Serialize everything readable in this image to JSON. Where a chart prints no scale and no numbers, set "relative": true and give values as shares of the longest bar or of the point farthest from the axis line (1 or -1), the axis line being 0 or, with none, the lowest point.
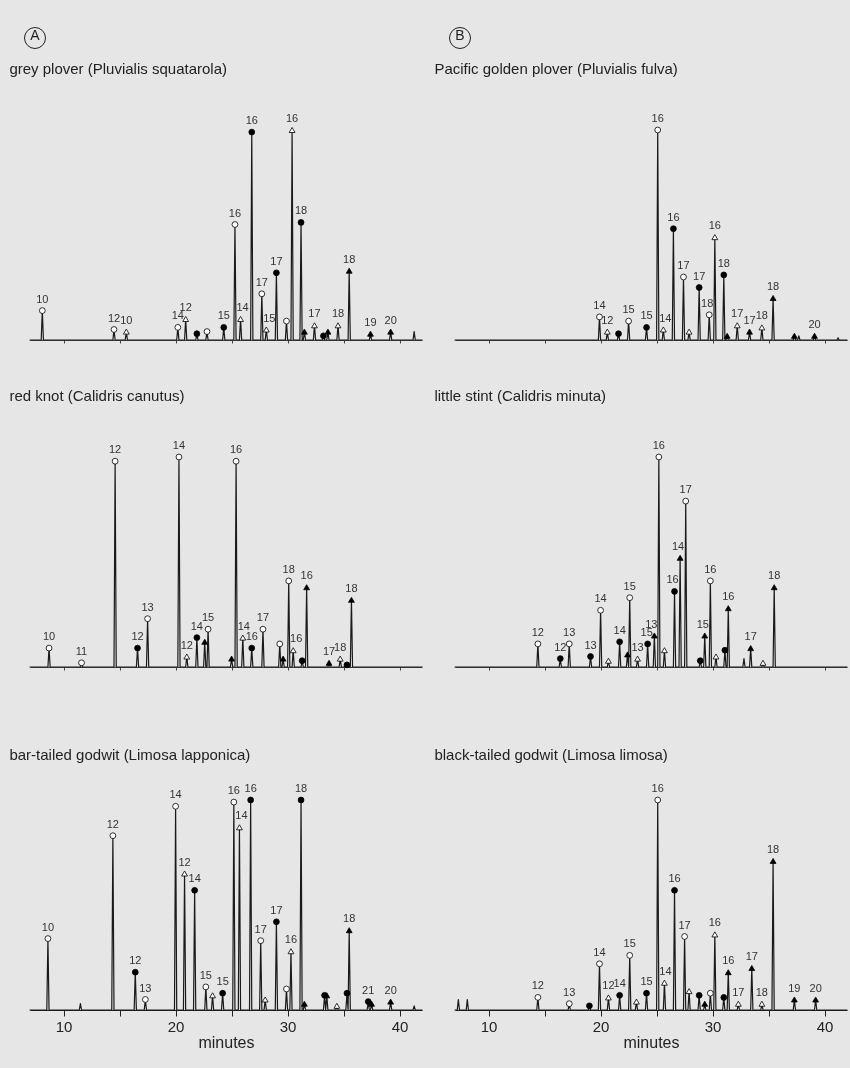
{
  "chart_data": [
    {
      "type": "line",
      "title": "grey plover (Pluvialis squatarola)",
      "relative": true,
      "xlim": [
        7,
        42
      ],
      "xticks": [
        10,
        {
          "value": 15,
          "label": null
        },
        20,
        {
          "value": 25,
          "label": null
        },
        30,
        {
          "value": 35,
          "label": null
        },
        40
      ],
      "tick_labels": false,
      "series": [
        {
          "color": "#1a1a1a",
          "x": [
            7,
            8.0,
            8.1,
            8.2,
            14.4,
            14.5,
            14.6,
            15.5,
            15.6,
            15.7,
            20.1,
            20.2,
            20.3,
            20.8,
            20.9,
            21.0,
            21.8,
            21.9,
            22.0,
            22.7,
            22.8,
            22.9,
            24.2,
            24.3,
            24.4,
            25.2,
            25.3,
            25.4,
            25.7,
            25.8,
            25.9,
            26.7,
            26.8,
            26.9,
            27.6,
            27.7,
            27.8,
            28.0,
            28.1,
            28.2,
            28.9,
            29.0,
            29.1,
            29.8,
            29.9,
            30.0,
            30.3,
            30.4,
            30.5,
            31.1,
            31.2,
            31.3,
            31.4,
            31.5,
            31.6,
            32.3,
            32.4,
            32.5,
            33.1,
            33.2,
            33.3,
            33.5,
            33.6,
            33.7,
            34.4,
            34.5,
            34.6,
            35.4,
            35.5,
            35.6,
            37.3,
            37.4,
            37.5,
            39.1,
            39.2,
            39.3,
            41.2,
            41.3,
            41.4,
            42
          ],
          "values": [
            0,
            0,
            0.14,
            0,
            0,
            0.05,
            0,
            0,
            0.04,
            0,
            0,
            0.06,
            0,
            0,
            0.1,
            0,
            0,
            0.03,
            0,
            0,
            0.04,
            0,
            0,
            0.06,
            0,
            0,
            0.55,
            0,
            0,
            0.1,
            0,
            0,
            0.99,
            0,
            0,
            0.22,
            0,
            0,
            0.05,
            0,
            0,
            0.32,
            0,
            0,
            0.09,
            0,
            0,
            1,
            0,
            0,
            0.56,
            0,
            0,
            0.04,
            0,
            0,
            0.07,
            0,
            0,
            0.02,
            0,
            0,
            0.04,
            0,
            0,
            0.07,
            0,
            0,
            0.33,
            0,
            0,
            0.03,
            0,
            0,
            0.04,
            0,
            0,
            0.04,
            0,
            0
          ]
        },
        {
          "type": "scatter",
          "marker": "circle",
          "color": "#ffffff",
          "x": [
            8.1,
            14.5,
            20.2,
            22.8,
            25.3,
            27.7,
            29.9
          ],
          "values": [
            0.14,
            0.05,
            0.06,
            0.04,
            0.55,
            0.22,
            0.09
          ]
        },
        {
          "type": "scatter",
          "marker": "circle",
          "color": "#000000",
          "x": [
            21.9,
            24.3,
            26.8,
            29.0,
            31.2,
            33.2
          ],
          "values": [
            0.03,
            0.06,
            0.99,
            0.32,
            0.56,
            0.02
          ]
        },
        {
          "type": "scatter",
          "marker": "triangle",
          "color": "#ffffff",
          "x": [
            15.6,
            20.9,
            25.8,
            28.1,
            30.4,
            32.4,
            34.5
          ],
          "values": [
            0.04,
            0.1,
            0.1,
            0.05,
            1,
            0.07,
            0.07
          ]
        },
        {
          "type": "scatter",
          "marker": "triangle",
          "color": "#000000",
          "x": [
            31.5,
            33.6,
            35.5,
            37.4,
            39.2
          ],
          "values": [
            0.04,
            0.04,
            0.33,
            0.03,
            0.04
          ]
        }
      ],
      "annotations": [
        "A",
        {
          "text": "10",
          "x": 8.1,
          "y": 0.14
        },
        {
          "text": "12",
          "x": 14.5,
          "y": 0.05
        },
        {
          "text": "10",
          "x": 15.6,
          "y": 0.04
        },
        {
          "text": "14",
          "x": 20.2,
          "y": 0.06
        },
        {
          "text": "12",
          "x": 20.9,
          "y": 0.1
        },
        {
          "text": "15",
          "x": 24.3,
          "y": 0.06
        },
        {
          "text": "16",
          "x": 25.3,
          "y": 0.55
        },
        {
          "text": "14",
          "x": 25.8,
          "y": 0.1
        },
        {
          "text": "16",
          "x": 26.8,
          "y": 0.99
        },
        {
          "text": "17",
          "x": 27.7,
          "y": 0.22
        },
        {
          "text": "15",
          "x": 28.1,
          "y": 0.05
        },
        {
          "text": "17",
          "x": 29.0,
          "y": 0.32
        },
        {
          "text": "16",
          "x": 30.4,
          "y": 1
        },
        {
          "text": "18",
          "x": 31.2,
          "y": 0.56
        },
        {
          "text": "17",
          "x": 32.4,
          "y": 0.07
        },
        {
          "text": "18",
          "x": 34.5,
          "y": 0.07
        },
        {
          "text": "18",
          "x": 35.5,
          "y": 0.33
        },
        {
          "text": "19",
          "x": 37.4,
          "y": 0.03
        },
        {
          "text": "20",
          "x": 39.2,
          "y": 0.04
        }
      ]
    },
    {
      "type": "line",
      "title": "Pacific golden plover (Pluvialis fulva)",
      "relative": true,
      "xlim": [
        7,
        42
      ],
      "xticks": [
        10,
        {
          "value": 15,
          "label": null
        },
        20,
        {
          "value": 25,
          "label": null
        },
        30,
        {
          "value": 35,
          "label": null
        },
        40
      ],
      "tick_labels": false,
      "series": [
        {
          "color": "#1a1a1a",
          "x": [
            7,
            19.8,
            19.9,
            20.0,
            20.5,
            20.6,
            20.7,
            21.5,
            21.6,
            21.7,
            22.4,
            22.5,
            22.6,
            24.0,
            24.1,
            24.2,
            25.0,
            25.1,
            25.2,
            25.5,
            25.6,
            25.7,
            26.4,
            26.5,
            26.6,
            27.3,
            27.4,
            27.5,
            27.8,
            27.9,
            28.0,
            28.7,
            28.8,
            28.9,
            29.6,
            29.7,
            29.8,
            30.1,
            30.2,
            30.3,
            30.9,
            31.0,
            31.1,
            31.2,
            31.3,
            31.4,
            32.1,
            32.2,
            32.3,
            33.2,
            33.3,
            33.4,
            34.3,
            34.4,
            34.5,
            35.3,
            35.4,
            35.5,
            37.2,
            37.3,
            37.4,
            37.6,
            37.7,
            37.8,
            39.0,
            39.1,
            39.2,
            41.1,
            41.2,
            41.3,
            42
          ],
          "values": [
            0,
            0,
            0.11,
            0,
            0,
            0.04,
            0,
            0,
            0.03,
            0,
            0,
            0.09,
            0,
            0,
            0.06,
            0,
            0,
            1,
            0,
            0,
            0.05,
            0,
            0,
            0.53,
            0,
            0,
            0.3,
            0,
            0,
            0.04,
            0,
            0,
            0.25,
            0,
            0,
            0.12,
            0,
            0,
            0.49,
            0,
            0,
            0.31,
            0,
            0,
            0.02,
            0,
            0,
            0.07,
            0,
            0,
            0.04,
            0,
            0,
            0.06,
            0,
            0,
            0.2,
            0,
            0,
            0.02,
            0,
            0,
            0.02,
            0,
            0,
            0.02,
            0,
            0,
            0.01,
            0,
            0
          ]
        },
        {
          "type": "scatter",
          "marker": "circle",
          "color": "#ffffff",
          "x": [
            19.9,
            22.5,
            25.1,
            27.4,
            29.7
          ],
          "values": [
            0.11,
            0.09,
            1,
            0.3,
            0.12
          ]
        },
        {
          "type": "scatter",
          "marker": "circle",
          "color": "#000000",
          "x": [
            21.6,
            24.1,
            26.5,
            28.8,
            31.0
          ],
          "values": [
            0.03,
            0.06,
            0.53,
            0.25,
            0.31
          ]
        },
        {
          "type": "scatter",
          "marker": "triangle",
          "color": "#ffffff",
          "x": [
            20.6,
            25.6,
            27.9,
            30.2,
            32.2,
            34.4
          ],
          "values": [
            0.04,
            0.05,
            0.04,
            0.49,
            0.07,
            0.06
          ]
        },
        {
          "type": "scatter",
          "marker": "triangle",
          "color": "#000000",
          "x": [
            31.3,
            33.3,
            35.4,
            37.3,
            39.1
          ],
          "values": [
            0.02,
            0.04,
            0.2,
            0.02,
            0.02
          ]
        }
      ],
      "annotations": [
        "B",
        {
          "text": "14",
          "x": 19.9,
          "y": 0.11
        },
        {
          "text": "12",
          "x": 20.6,
          "y": 0.04
        },
        {
          "text": "15",
          "x": 22.5,
          "y": 0.09
        },
        {
          "text": "15",
          "x": 24.1,
          "y": 0.06
        },
        {
          "text": "16",
          "x": 25.1,
          "y": 1
        },
        {
          "text": "14",
          "x": 25.6,
          "y": 0.05
        },
        {
          "text": "16",
          "x": 26.5,
          "y": 0.53
        },
        {
          "text": "17",
          "x": 27.4,
          "y": 0.3
        },
        {
          "text": "17",
          "x": 28.8,
          "y": 0.25
        },
        {
          "text": "18",
          "x": 29.7,
          "y": 0.12
        },
        {
          "text": "16",
          "x": 30.2,
          "y": 0.49
        },
        {
          "text": "18",
          "x": 31.0,
          "y": 0.31
        },
        {
          "text": "17",
          "x": 32.2,
          "y": 0.07
        },
        {
          "text": "17",
          "x": 33.3,
          "y": 0.04
        },
        {
          "text": "18",
          "x": 34.4,
          "y": 0.06
        },
        {
          "text": "18",
          "x": 35.4,
          "y": 0.2
        },
        {
          "text": "20",
          "x": 39.1,
          "y": 0.02
        }
      ]
    },
    {
      "type": "line",
      "title": "red knot (Calidris canutus)",
      "relative": true,
      "xlim": [
        7,
        42
      ],
      "xticks": [
        10,
        {
          "value": 15,
          "label": null
        },
        20,
        {
          "value": 25,
          "label": null
        },
        30,
        {
          "value": 35,
          "label": null
        },
        40
      ],
      "tick_labels": false,
      "series": [
        {
          "color": "#1a1a1a",
          "x": [
            7,
            8.6,
            8.7,
            8.8,
            11.5,
            11.6,
            11.7,
            14.5,
            14.6,
            14.7,
            16.5,
            16.6,
            16.7,
            17.4,
            17.5,
            17.6,
            20.2,
            20.3,
            20.4,
            20.9,
            21.0,
            21.1,
            21.8,
            21.9,
            22.0,
            22.5,
            22.6,
            22.7,
            22.8,
            22.9,
            23.0,
            24.9,
            25.0,
            25.1,
            25.3,
            25.4,
            25.5,
            25.9,
            26.0,
            26.1,
            26.7,
            26.8,
            26.9,
            27.7,
            27.8,
            27.9,
            29.2,
            29.3,
            29.4,
            29.5,
            29.6,
            29.7,
            30.0,
            30.1,
            30.2,
            30.4,
            30.5,
            30.6,
            31.2,
            31.3,
            31.4,
            31.6,
            31.7,
            31.8,
            33.6,
            33.7,
            33.8,
            34.6,
            34.7,
            34.8,
            35.2,
            35.3,
            35.4,
            35.6,
            35.7,
            35.8,
            42
          ],
          "values": [
            0,
            0,
            0.09,
            0,
            0,
            0.02,
            0,
            0,
            0.98,
            0,
            0,
            0.09,
            0,
            0,
            0.23,
            0,
            0,
            1,
            0,
            0,
            0.05,
            0,
            0,
            0.14,
            0,
            0,
            0.12,
            0,
            0,
            0.18,
            0,
            0,
            0.04,
            0,
            0,
            0.98,
            0,
            0,
            0.14,
            0,
            0,
            0.09,
            0,
            0,
            0.18,
            0,
            0,
            0.11,
            0,
            0,
            0.04,
            0,
            0,
            0.41,
            0,
            0,
            0.08,
            0,
            0,
            0.03,
            0,
            0,
            0.38,
            0,
            0,
            0.02,
            0,
            0,
            0.04,
            0,
            0,
            0.01,
            0,
            0,
            0.32,
            0,
            0
          ]
        },
        {
          "type": "scatter",
          "marker": "circle",
          "color": "#ffffff",
          "x": [
            8.7,
            11.6,
            14.6,
            17.5,
            20.3,
            22.9,
            25.4,
            27.8,
            29.3,
            30.1
          ],
          "values": [
            0.09,
            0.02,
            0.98,
            0.23,
            1,
            0.18,
            0.98,
            0.18,
            0.11,
            0.41
          ]
        },
        {
          "type": "scatter",
          "marker": "circle",
          "color": "#000000",
          "x": [
            16.6,
            21.9,
            26.8,
            31.3,
            35.3
          ],
          "values": [
            0.09,
            0.14,
            0.09,
            0.03,
            0.01
          ]
        },
        {
          "type": "scatter",
          "marker": "triangle",
          "color": "#ffffff",
          "x": [
            21.0,
            26.0,
            30.5,
            34.7
          ],
          "values": [
            0.05,
            0.14,
            0.08,
            0.04
          ]
        },
        {
          "type": "scatter",
          "marker": "triangle",
          "color": "#000000",
          "x": [
            22.6,
            25.0,
            29.6,
            31.7,
            33.7,
            35.7
          ],
          "values": [
            0.12,
            0.04,
            0.04,
            0.38,
            0.02,
            0.32
          ]
        }
      ],
      "annotations": [
        {
          "text": "10",
          "x": 8.7,
          "y": 0.09
        },
        {
          "text": "11",
          "x": 11.6,
          "y": 0.02
        },
        {
          "text": "12",
          "x": 14.6,
          "y": 0.98
        },
        {
          "text": "12",
          "x": 16.6,
          "y": 0.09
        },
        {
          "text": "13",
          "x": 17.5,
          "y": 0.23
        },
        {
          "text": "14",
          "x": 20.3,
          "y": 1
        },
        {
          "text": "12",
          "x": 21.0,
          "y": 0.05
        },
        {
          "text": "14",
          "x": 21.9,
          "y": 0.14
        },
        {
          "text": "15",
          "x": 22.9,
          "y": 0.18
        },
        {
          "text": "16",
          "x": 25.4,
          "y": 0.98
        },
        {
          "text": "14",
          "x": 26.0,
          "y": 0.14
        },
        {
          "text": "16",
          "x": 26.8,
          "y": 0.09
        },
        {
          "text": "17",
          "x": 27.8,
          "y": 0.18
        },
        {
          "text": "18",
          "x": 30.1,
          "y": 0.41
        },
        {
          "text": "16",
          "x": 30.5,
          "y": 0.08
        },
        {
          "text": "16",
          "x": 31.7,
          "y": 0.38
        },
        {
          "text": "17",
          "x": 33.7,
          "y": 0.02
        },
        {
          "text": "18",
          "x": 34.7,
          "y": 0.04
        },
        {
          "text": "18",
          "x": 35.7,
          "y": 0.32
        }
      ]
    },
    {
      "type": "line",
      "title": "little stint (Calidris minuta)",
      "relative": true,
      "xlim": [
        7,
        42
      ],
      "xticks": [
        10,
        {
          "value": 15,
          "label": null
        },
        20,
        {
          "value": 25,
          "label": null
        },
        30,
        {
          "value": 35,
          "label": null
        },
        40
      ],
      "tick_labels": false,
      "series": [
        {
          "color": "#1a1a1a",
          "x": [
            7,
            14.3,
            14.4,
            14.5,
            16.3,
            16.4,
            16.5,
            17.1,
            17.2,
            17.3,
            19.0,
            19.1,
            19.2,
            19.9,
            20.0,
            20.1,
            20.6,
            20.7,
            20.8,
            21.6,
            21.7,
            21.8,
            22.3,
            22.4,
            22.5,
            22.5,
            22.6,
            22.7,
            23.2,
            23.3,
            23.4,
            24.1,
            24.2,
            24.3,
            24.7,
            24.8,
            24.9,
            25.1,
            25.2,
            25.3,
            25.6,
            25.7,
            25.8,
            26.5,
            26.6,
            26.7,
            27.0,
            27.1,
            27.2,
            27.5,
            27.6,
            27.7,
            28.8,
            28.9,
            29.0,
            29.2,
            29.3,
            29.4,
            29.7,
            29.8,
            29.9,
            30.2,
            30.3,
            30.4,
            31.0,
            31.1,
            31.2,
            31.3,
            31.4,
            31.5,
            32.7,
            32.8,
            32.9,
            33.3,
            33.4,
            33.5,
            34.4,
            34.5,
            34.6,
            35.4,
            35.5,
            35.6,
            42
          ],
          "values": [
            0,
            0,
            0.11,
            0,
            0,
            0.04,
            0,
            0,
            0.11,
            0,
            0,
            0.05,
            0,
            0,
            0.27,
            0,
            0,
            0.03,
            0,
            0,
            0.12,
            0,
            0,
            0.06,
            0,
            0,
            0.33,
            0,
            0,
            0.04,
            0,
            0,
            0.11,
            0,
            0,
            0.15,
            0,
            0,
            1,
            0,
            0,
            0.08,
            0,
            0,
            0.36,
            0,
            0,
            0.52,
            0,
            0,
            0.79,
            0,
            0,
            0.03,
            0,
            0,
            0.15,
            0,
            0,
            0.41,
            0,
            0,
            0.05,
            0,
            0,
            0.08,
            0,
            0,
            0.28,
            0,
            0,
            0.04,
            0,
            0,
            0.09,
            0,
            0,
            0.02,
            0,
            0,
            0.38,
            0,
            0
          ]
        },
        {
          "type": "scatter",
          "marker": "circle",
          "color": "#ffffff",
          "x": [
            14.4,
            17.2,
            20.0,
            22.6,
            25.2,
            27.6,
            29.8
          ],
          "values": [
            0.11,
            0.11,
            0.27,
            0.33,
            1,
            0.79,
            0.41
          ]
        },
        {
          "type": "scatter",
          "marker": "circle",
          "color": "#000000",
          "x": [
            16.4,
            19.1,
            21.7,
            24.2,
            26.6,
            28.9,
            31.1
          ],
          "values": [
            0.04,
            0.05,
            0.12,
            0.11,
            0.36,
            0.03,
            0.08
          ]
        },
        {
          "type": "scatter",
          "marker": "triangle",
          "color": "#ffffff",
          "x": [
            20.7,
            23.3,
            25.7,
            30.3,
            34.5
          ],
          "values": [
            0.03,
            0.04,
            0.08,
            0.05,
            0.02
          ]
        },
        {
          "type": "scatter",
          "marker": "triangle",
          "color": "#000000",
          "x": [
            22.4,
            24.8,
            27.1,
            29.3,
            31.4,
            33.4,
            35.5
          ],
          "values": [
            0.06,
            0.15,
            0.52,
            0.15,
            0.28,
            0.09,
            0.38
          ]
        }
      ],
      "annotations": [
        {
          "text": "12",
          "x": 14.4,
          "y": 0.11
        },
        {
          "text": "12",
          "x": 16.4,
          "y": 0.04
        },
        {
          "text": "13",
          "x": 17.2,
          "y": 0.11
        },
        {
          "text": "13",
          "x": 19.1,
          "y": 0.05
        },
        {
          "text": "14",
          "x": 20.0,
          "y": 0.27
        },
        {
          "text": "14",
          "x": 21.7,
          "y": 0.12
        },
        {
          "text": "15",
          "x": 22.6,
          "y": 0.33
        },
        {
          "text": "13",
          "x": 23.3,
          "y": 0.04
        },
        {
          "text": "15",
          "x": 24.2,
          "y": 0.11
        },
        {
          "text": "13",
          "x": 24.8,
          "y": 0.15
        },
        {
          "text": "16",
          "x": 25.2,
          "y": 1
        },
        {
          "text": "16",
          "x": 26.6,
          "y": 0.36
        },
        {
          "text": "14",
          "x": 27.1,
          "y": 0.52
        },
        {
          "text": "17",
          "x": 27.6,
          "y": 0.79
        },
        {
          "text": "15",
          "x": 29.3,
          "y": 0.15
        },
        {
          "text": "16",
          "x": 29.8,
          "y": 0.41
        },
        {
          "text": "16",
          "x": 31.4,
          "y": 0.28
        },
        {
          "text": "17",
          "x": 33.4,
          "y": 0.09
        },
        {
          "text": "18",
          "x": 35.5,
          "y": 0.38
        }
      ]
    },
    {
      "type": "line",
      "title": "bar-tailed godwit (Limosa lapponica)",
      "relative": true,
      "xlim": [
        7,
        42
      ],
      "xticks": [
        10,
        {
          "value": 15,
          "label": null
        },
        20,
        {
          "value": 25,
          "label": null
        },
        30,
        {
          "value": 35,
          "label": null
        },
        40
      ],
      "xlabel": "minutes",
      "series": [
        {
          "color": "#1a1a1a",
          "x": [
            7,
            8.5,
            8.6,
            8.7,
            11.4,
            11.5,
            11.6,
            14.3,
            14.4,
            14.5,
            16.3,
            16.4,
            16.5,
            17.2,
            17.3,
            17.4,
            19.9,
            20.0,
            20.1,
            20.7,
            20.8,
            20.9,
            21.6,
            21.7,
            21.8,
            22.6,
            22.7,
            22.8,
            23.2,
            23.3,
            23.4,
            24.1,
            24.2,
            24.3,
            25.1,
            25.2,
            25.3,
            25.6,
            25.7,
            25.8,
            26.6,
            26.7,
            26.8,
            27.5,
            27.6,
            27.7,
            27.9,
            28.0,
            28.1,
            28.9,
            29.0,
            29.1,
            29.8,
            29.9,
            30.0,
            30.2,
            30.3,
            30.4,
            31.1,
            31.2,
            31.3,
            31.4,
            31.5,
            31.6,
            33.2,
            33.3,
            33.4,
            33.4,
            33.5,
            33.6,
            34.3,
            34.4,
            34.5,
            35.2,
            35.3,
            35.4,
            35.4,
            35.5,
            35.6,
            37.1,
            37.2,
            37.3,
            37.4,
            37.5,
            37.6,
            39.1,
            39.2,
            39.3,
            41.2,
            41.3,
            41.4,
            42
          ],
          "values": [
            0,
            0,
            0.34,
            0,
            0,
            0.03,
            0,
            0,
            0.83,
            0,
            0,
            0.18,
            0,
            0,
            0.05,
            0,
            0,
            0.97,
            0,
            0,
            0.65,
            0,
            0,
            0.57,
            0,
            0,
            0.11,
            0,
            0,
            0.07,
            0,
            0,
            0.08,
            0,
            0,
            0.99,
            0,
            0,
            0.87,
            0,
            0,
            1,
            0,
            0,
            0.33,
            0,
            0,
            0.05,
            0,
            0,
            0.42,
            0,
            0,
            0.1,
            0,
            0,
            0.28,
            0,
            0,
            1,
            0,
            0,
            0.03,
            0,
            0,
            0.07,
            0,
            0,
            0.07,
            0,
            0,
            0.02,
            0,
            0,
            0.08,
            0,
            0,
            0.38,
            0,
            0,
            0.04,
            0,
            0,
            0.03,
            0,
            0,
            0.04,
            0,
            0,
            0.02,
            0,
            0
          ]
        },
        {
          "type": "scatter",
          "marker": "circle",
          "color": "#ffffff",
          "x": [
            8.6,
            14.4,
            17.3,
            20.0,
            22.7,
            25.2,
            27.6,
            29.9
          ],
          "values": [
            0.34,
            0.83,
            0.05,
            0.97,
            0.11,
            0.99,
            0.33,
            0.1
          ]
        },
        {
          "type": "scatter",
          "marker": "circle",
          "color": "#000000",
          "x": [
            16.4,
            21.7,
            24.2,
            26.7,
            29.0,
            31.2,
            33.3,
            35.3,
            37.2
          ],
          "values": [
            0.18,
            0.57,
            0.08,
            1,
            0.42,
            1,
            0.07,
            0.08,
            0.04
          ]
        },
        {
          "type": "scatter",
          "marker": "triangle",
          "color": "#ffffff",
          "x": [
            20.8,
            23.3,
            25.7,
            28.0,
            30.3,
            34.4
          ],
          "values": [
            0.65,
            0.07,
            0.87,
            0.05,
            0.28,
            0.02
          ]
        },
        {
          "type": "scatter",
          "marker": "triangle",
          "color": "#000000",
          "x": [
            31.5,
            33.5,
            35.5,
            37.5,
            39.2
          ],
          "values": [
            0.03,
            0.07,
            0.38,
            0.03,
            0.04
          ]
        }
      ],
      "annotations": [
        {
          "text": "10",
          "x": 8.6,
          "y": 0.34
        },
        {
          "text": "12",
          "x": 14.4,
          "y": 0.83
        },
        {
          "text": "12",
          "x": 16.4,
          "y": 0.18
        },
        {
          "text": "13",
          "x": 17.3,
          "y": 0.05
        },
        {
          "text": "14",
          "x": 20.0,
          "y": 0.97
        },
        {
          "text": "12",
          "x": 20.8,
          "y": 0.65
        },
        {
          "text": "14",
          "x": 21.7,
          "y": 0.57
        },
        {
          "text": "15",
          "x": 22.7,
          "y": 0.11
        },
        {
          "text": "15",
          "x": 24.2,
          "y": 0.08
        },
        {
          "text": "16",
          "x": 25.2,
          "y": 0.99
        },
        {
          "text": "14",
          "x": 25.7,
          "y": 0.87
        },
        {
          "text": "16",
          "x": 26.7,
          "y": 1
        },
        {
          "text": "17",
          "x": 27.6,
          "y": 0.33
        },
        {
          "text": "17",
          "x": 29.0,
          "y": 0.42
        },
        {
          "text": "16",
          "x": 30.3,
          "y": 0.28
        },
        {
          "text": "18",
          "x": 31.2,
          "y": 1
        },
        {
          "text": "18",
          "x": 35.5,
          "y": 0.38
        },
        {
          "text": "21",
          "x": 37.2,
          "y": 0.04
        },
        {
          "text": "20",
          "x": 39.2,
          "y": 0.04
        }
      ]
    },
    {
      "type": "line",
      "title": "black-tailed godwit (Limosa limosa)",
      "relative": true,
      "xlim": [
        7,
        42
      ],
      "xticks": [
        10,
        {
          "value": 15,
          "label": null
        },
        20,
        {
          "value": 25,
          "label": null
        },
        30,
        {
          "value": 35,
          "label": null
        },
        40
      ],
      "xlabel": "minutes",
      "series": [
        {
          "color": "#1a1a1a",
          "x": [
            7,
            7.2,
            7.3,
            7.4,
            8.0,
            8.1,
            8.2,
            14.3,
            14.4,
            14.5,
            17.1,
            17.2,
            17.3,
            18.9,
            19.0,
            19.1,
            19.8,
            19.9,
            20.0,
            20.6,
            20.7,
            20.8,
            21.6,
            21.7,
            21.8,
            22.5,
            22.6,
            22.7,
            23.1,
            23.2,
            23.3,
            24.0,
            24.1,
            24.2,
            25.0,
            25.1,
            25.2,
            25.6,
            25.7,
            25.8,
            26.5,
            26.6,
            26.7,
            27.4,
            27.5,
            27.6,
            27.8,
            27.9,
            28.0,
            28.7,
            28.8,
            28.9,
            29.2,
            29.3,
            29.4,
            29.7,
            29.8,
            29.9,
            30.1,
            30.2,
            30.3,
            30.9,
            31.0,
            31.1,
            31.3,
            31.4,
            31.5,
            32.2,
            32.3,
            32.4,
            33.4,
            33.5,
            33.6,
            34.3,
            34.4,
            34.5,
            35.3,
            35.4,
            35.5,
            37.2,
            37.3,
            37.4,
            39.1,
            39.2,
            39.3,
            42
          ],
          "values": [
            0,
            0,
            0.05,
            0,
            0,
            0.05,
            0,
            0,
            0.06,
            0,
            0,
            0.03,
            0,
            0,
            0.02,
            0,
            0,
            0.22,
            0,
            0,
            0.06,
            0,
            0,
            0.07,
            0,
            0,
            0.26,
            0,
            0,
            0.04,
            0,
            0,
            0.08,
            0,
            0,
            1,
            0,
            0,
            0.13,
            0,
            0,
            0.57,
            0,
            0,
            0.35,
            0,
            0,
            0.09,
            0,
            0,
            0.07,
            0,
            0,
            0.03,
            0,
            0,
            0.08,
            0,
            0,
            0.36,
            0,
            0,
            0.06,
            0,
            0,
            0.18,
            0,
            0,
            0.03,
            0,
            0,
            0.2,
            0,
            0,
            0.03,
            0,
            0,
            0.71,
            0,
            0,
            0.05,
            0,
            0,
            0.05,
            0,
            0
          ]
        },
        {
          "type": "scatter",
          "marker": "circle",
          "color": "#ffffff",
          "x": [
            14.4,
            17.2,
            19.9,
            22.6,
            25.1,
            27.5,
            29.8
          ],
          "values": [
            0.06,
            0.03,
            0.22,
            0.26,
            1,
            0.35,
            0.08
          ]
        },
        {
          "type": "scatter",
          "marker": "circle",
          "color": "#000000",
          "x": [
            19.0,
            21.7,
            24.1,
            26.6,
            28.8,
            31.0
          ],
          "values": [
            0.02,
            0.07,
            0.08,
            0.57,
            0.07,
            0.06
          ]
        },
        {
          "type": "scatter",
          "marker": "triangle",
          "color": "#ffffff",
          "x": [
            20.7,
            23.2,
            25.7,
            27.9,
            30.2,
            32.3,
            34.4
          ],
          "values": [
            0.06,
            0.04,
            0.13,
            0.09,
            0.36,
            0.03,
            0.03
          ]
        },
        {
          "type": "scatter",
          "marker": "triangle",
          "color": "#000000",
          "x": [
            29.3,
            31.4,
            33.5,
            35.4,
            37.3,
            39.2
          ],
          "values": [
            0.03,
            0.18,
            0.2,
            0.71,
            0.05,
            0.05
          ]
        }
      ],
      "annotations": [
        {
          "text": "12",
          "x": 14.4,
          "y": 0.06
        },
        {
          "text": "13",
          "x": 17.2,
          "y": 0.03
        },
        {
          "text": "14",
          "x": 19.9,
          "y": 0.22
        },
        {
          "text": "12",
          "x": 20.7,
          "y": 0.06
        },
        {
          "text": "14",
          "x": 21.7,
          "y": 0.07
        },
        {
          "text": "15",
          "x": 22.6,
          "y": 0.26
        },
        {
          "text": "15",
          "x": 24.1,
          "y": 0.08
        },
        {
          "text": "16",
          "x": 25.1,
          "y": 1
        },
        {
          "text": "14",
          "x": 25.7,
          "y": 0.13
        },
        {
          "text": "16",
          "x": 26.6,
          "y": 0.57
        },
        {
          "text": "17",
          "x": 27.5,
          "y": 0.35
        },
        {
          "text": "16",
          "x": 30.2,
          "y": 0.36
        },
        {
          "text": "16",
          "x": 31.4,
          "y": 0.18
        },
        {
          "text": "17",
          "x": 32.3,
          "y": 0.03
        },
        {
          "text": "17",
          "x": 33.5,
          "y": 0.2
        },
        {
          "text": "18",
          "x": 34.4,
          "y": 0.03
        },
        {
          "text": "18",
          "x": 35.4,
          "y": 0.71
        },
        {
          "text": "19",
          "x": 37.3,
          "y": 0.05
        },
        {
          "text": "20",
          "x": 39.2,
          "y": 0.05
        }
      ]
    }
  ]
}
